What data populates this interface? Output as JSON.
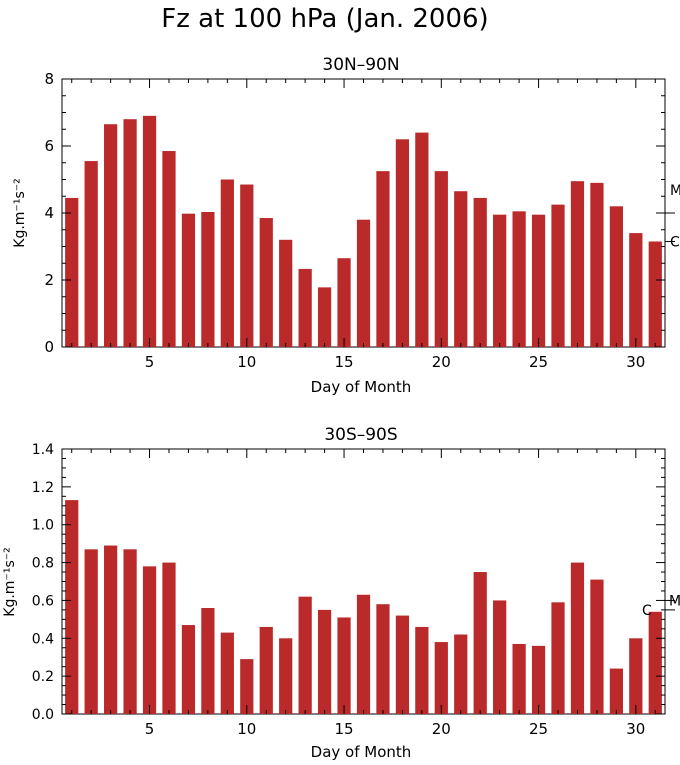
{
  "figure": {
    "title": "Fz at 100 hPa (Jan. 2006)"
  },
  "chart_data": [
    {
      "type": "bar",
      "title": "30N–90N",
      "xlabel": "Day of Month",
      "ylabel": "Kg.m⁻¹s⁻²",
      "x": [
        1,
        2,
        3,
        4,
        5,
        6,
        7,
        8,
        9,
        10,
        11,
        12,
        13,
        14,
        15,
        16,
        17,
        18,
        19,
        20,
        21,
        22,
        23,
        24,
        25,
        26,
        27,
        28,
        29,
        30,
        31
      ],
      "values": [
        4.45,
        5.55,
        6.65,
        6.8,
        6.9,
        5.85,
        3.98,
        4.03,
        5.0,
        4.85,
        3.85,
        3.2,
        2.33,
        1.78,
        2.65,
        3.8,
        5.25,
        6.2,
        6.4,
        5.25,
        4.65,
        4.45,
        3.95,
        4.05,
        3.95,
        4.25,
        4.95,
        4.9,
        4.2,
        3.4,
        3.15
      ],
      "xlim": [
        0.5,
        31.5
      ],
      "ylim": [
        0,
        8
      ],
      "xticks": [
        5,
        10,
        15,
        20,
        25,
        30
      ],
      "yticks": [
        0,
        2,
        4,
        6,
        8
      ],
      "markers": [
        {
          "label": "M",
          "value": 4.0
        },
        {
          "label": "C",
          "value": 3.15
        }
      ],
      "bar_color": "#bb2a2a"
    },
    {
      "type": "bar",
      "title": "30S–90S",
      "xlabel": "Day of Month",
      "ylabel": "Kg.m⁻¹s⁻²",
      "x": [
        1,
        2,
        3,
        4,
        5,
        6,
        7,
        8,
        9,
        10,
        11,
        12,
        13,
        14,
        15,
        16,
        17,
        18,
        19,
        20,
        21,
        22,
        23,
        24,
        25,
        26,
        27,
        28,
        29,
        30,
        31
      ],
      "values": [
        1.13,
        0.87,
        0.89,
        0.87,
        0.78,
        0.8,
        0.47,
        0.56,
        0.43,
        0.29,
        0.46,
        0.4,
        0.62,
        0.55,
        0.51,
        0.63,
        0.58,
        0.52,
        0.46,
        0.38,
        0.42,
        0.75,
        0.6,
        0.37,
        0.36,
        0.59,
        0.8,
        0.71,
        0.24,
        0.4,
        0.54
      ],
      "xlim": [
        0.5,
        31.5
      ],
      "ylim": [
        0,
        1.4
      ],
      "xticks": [
        5,
        10,
        15,
        20,
        25,
        30
      ],
      "yticks": [
        0.0,
        0.2,
        0.4,
        0.6,
        0.8,
        1.0,
        1.2,
        1.4
      ],
      "markers": [
        {
          "label": "C",
          "value": 0.55
        },
        {
          "label": "M",
          "value": 0.6
        }
      ],
      "bar_color": "#bb2a2a"
    }
  ]
}
